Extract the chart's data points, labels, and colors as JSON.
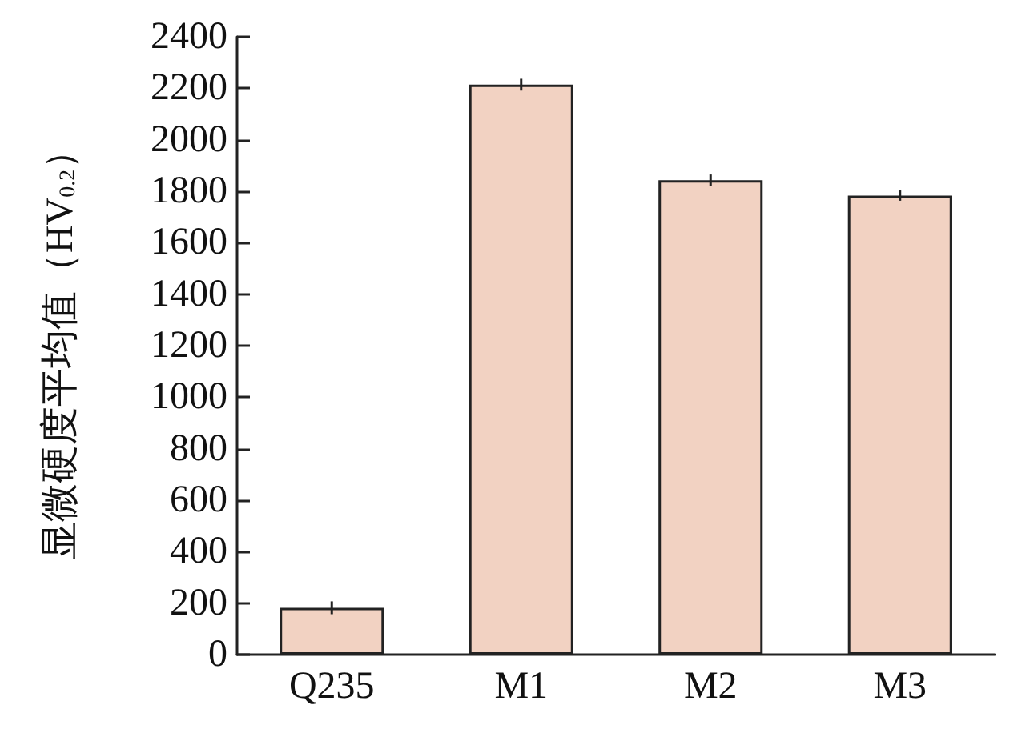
{
  "chart_data": {
    "type": "bar",
    "ylabel": "显微硬度平均值（HV$_{0.2}$）",
    "categories": [
      "Q235",
      "M1",
      "M2",
      "M3"
    ],
    "values": [
      182,
      2214,
      1843,
      1783
    ],
    "errors": [
      25,
      23,
      22,
      20
    ],
    "color": "#f2d2c2",
    "ylim": [
      0,
      2400
    ],
    "yticks": [
      0,
      200,
      400,
      600,
      800,
      1000,
      1200,
      1400,
      1600,
      1800,
      2000,
      2200,
      2400
    ],
    "grid": false
  }
}
